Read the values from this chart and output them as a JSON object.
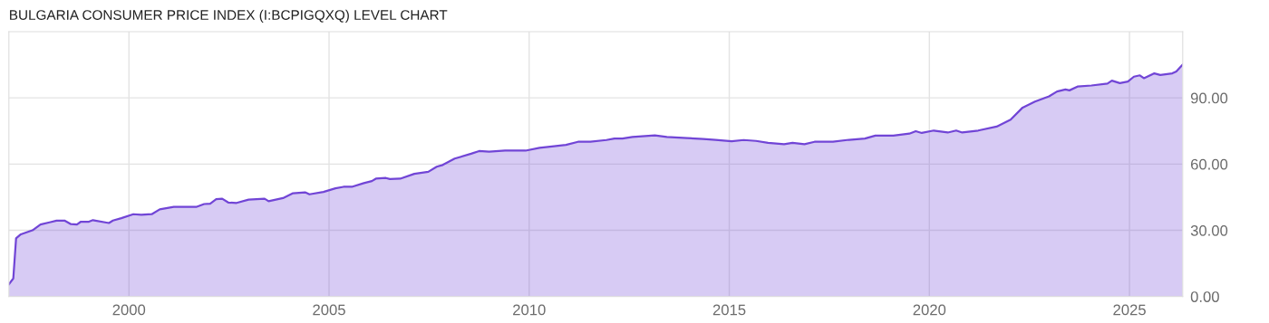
{
  "chart_data": {
    "type": "area",
    "title": "BULGARIA CONSUMER PRICE INDEX (I:BCPIGQXQ) LEVEL CHART",
    "x": [
      1997.0,
      1997.11,
      1997.18,
      1997.3,
      1997.59,
      1997.79,
      1998.04,
      1998.19,
      1998.39,
      1998.55,
      1998.7,
      1998.8,
      1999.0,
      1999.1,
      1999.5,
      1999.6,
      1999.81,
      2000.11,
      2000.31,
      2000.57,
      2000.77,
      2001.12,
      2001.68,
      2001.88,
      2002.03,
      2002.18,
      2002.33,
      2002.48,
      2002.69,
      2002.99,
      2003.39,
      2003.49,
      2003.85,
      2004.1,
      2004.4,
      2004.51,
      2004.86,
      2005.16,
      2005.36,
      2005.57,
      2005.87,
      2006.07,
      2006.17,
      2006.42,
      2006.52,
      2006.78,
      2007.13,
      2007.48,
      2007.69,
      2007.84,
      2008.14,
      2008.55,
      2008.75,
      2009.0,
      2009.4,
      2009.91,
      2010.26,
      2010.52,
      2010.92,
      2011.22,
      2011.53,
      2011.93,
      2012.13,
      2012.33,
      2012.58,
      2013.14,
      2013.44,
      2013.95,
      2014.35,
      2014.66,
      2015.06,
      2015.36,
      2015.67,
      2015.97,
      2016.37,
      2016.58,
      2016.88,
      2017.13,
      2017.59,
      2017.99,
      2018.39,
      2018.65,
      2019.1,
      2019.5,
      2019.66,
      2019.81,
      2020.11,
      2020.46,
      2020.67,
      2020.82,
      2021.22,
      2021.68,
      2022.03,
      2022.33,
      2022.64,
      2022.99,
      2023.19,
      2023.4,
      2023.5,
      2023.7,
      2024.05,
      2024.45,
      2024.56,
      2024.76,
      2024.96,
      2025.11,
      2025.26,
      2025.36,
      2025.62,
      2025.77,
      2026.07,
      2026.17,
      2026.33
    ],
    "series": [
      {
        "color": "#7145d6",
        "values": [
          5.5,
          8.2,
          26.4,
          28.2,
          30,
          32.6,
          33.7,
          34.4,
          34.4,
          32.8,
          32.6,
          33.9,
          33.9,
          34.6,
          33.3,
          34.4,
          35.5,
          37.3,
          37,
          37.3,
          39.5,
          40.6,
          40.6,
          41.9,
          42.1,
          44.1,
          44.3,
          42.6,
          42.4,
          43.9,
          44.3,
          43.2,
          44.6,
          46.8,
          47.2,
          46.3,
          47.4,
          49,
          49.7,
          49.7,
          51.4,
          52.3,
          53.4,
          53.7,
          53.2,
          53.4,
          55.6,
          56.5,
          58.8,
          59.6,
          62.5,
          64.7,
          65.9,
          65.6,
          66.1,
          66.1,
          67.4,
          67.9,
          68.7,
          70.1,
          70.1,
          70.9,
          71.6,
          71.6,
          72.3,
          73.0,
          72.3,
          71.8,
          71.4,
          71.0,
          70.3,
          70.9,
          70.5,
          69.6,
          69.0,
          69.6,
          69.0,
          70.1,
          70.1,
          71.0,
          71.6,
          72.9,
          72.9,
          73.8,
          74.9,
          74.1,
          75.2,
          74.3,
          75.2,
          74.3,
          75.2,
          77.0,
          80.1,
          85.6,
          88.3,
          90.7,
          92.9,
          93.8,
          93.4,
          95.1,
          95.6,
          96.5,
          97.8,
          96.7,
          97.4,
          99.6,
          100.2,
          98.9,
          101.1,
          100.4,
          101.1,
          102.0,
          105.1
        ]
      }
    ],
    "xlim": [
      1997.0,
      2026.33
    ],
    "xticks": [
      2000,
      2005,
      2010,
      2015,
      2020,
      2025
    ],
    "ylim": [
      0,
      120
    ],
    "yticks": [
      {
        "value": 0,
        "label": "0.00"
      },
      {
        "value": 30,
        "label": "30.00"
      },
      {
        "value": 60,
        "label": "60.00"
      },
      {
        "value": 90,
        "label": "90.00"
      }
    ],
    "grid": true,
    "legend": false
  }
}
